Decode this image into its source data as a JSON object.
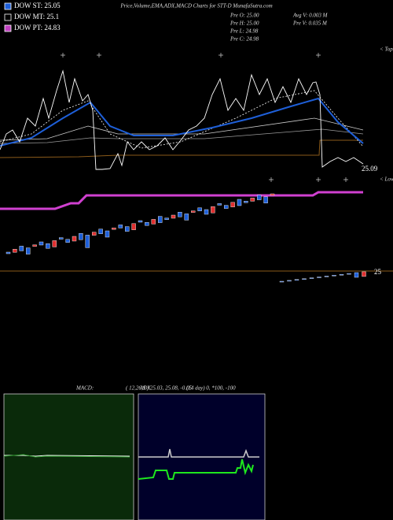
{
  "header": {
    "title": "Price,Volume,EMA,ADX,MACD Charts for STT-D MunafaSutra.com"
  },
  "legend": [
    {
      "label": "DOW ST: 25.05"
    },
    {
      "label": "DOW MT: 25.1"
    },
    {
      "label": "DOW PT: 24.83"
    }
  ],
  "stats": {
    "pre_open": "Pre  O: 25.00",
    "pre_high": "Pre  H: 25.00",
    "pre_low": "Pre  L: 24.98",
    "pre_close": "Pre  C: 24.98",
    "avg_volume": "Avg V: 0.003 M",
    "pre_volume": "Pre   V: 0.035 M"
  },
  "price_labels": {
    "last": "25.09",
    "level": "25"
  },
  "markers": {
    "tops": "< Tops",
    "lows": "< Lows"
  },
  "macd": {
    "label": "MACD:",
    "params": "( 12,26,9 ) 25.03, 25.08, -0.05"
  },
  "adx": {
    "label": "ADX",
    "params": "(14  day) 0, *100, -100"
  }
}
